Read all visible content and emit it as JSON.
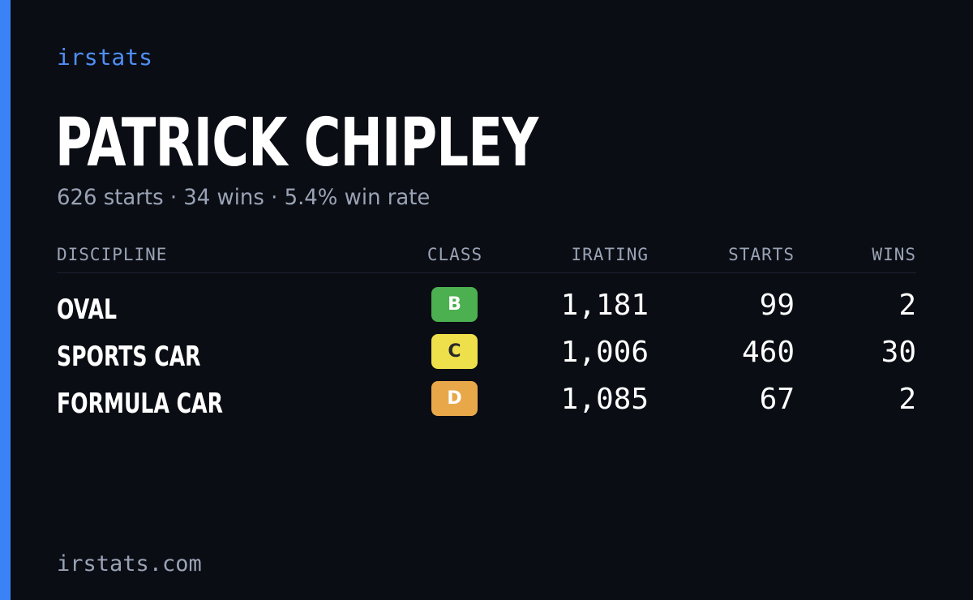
{
  "brand": "irstats",
  "driver": {
    "name": "PATRICK CHIPLEY",
    "summary": "626 starts · 34 wins · 5.4% win rate"
  },
  "table": {
    "headers": {
      "discipline": "DISCIPLINE",
      "class": "CLASS",
      "irating": "IRATING",
      "starts": "STARTS",
      "wins": "WINS"
    },
    "rows": [
      {
        "discipline": "OVAL",
        "class": "B",
        "class_color": "#4caf50",
        "class_text_color": "#ffffff",
        "irating": "1,181",
        "starts": "99",
        "wins": "2"
      },
      {
        "discipline": "SPORTS CAR",
        "class": "C",
        "class_color": "#eee04a",
        "class_text_color": "#2a2a2a",
        "irating": "1,006",
        "starts": "460",
        "wins": "30"
      },
      {
        "discipline": "FORMULA CAR",
        "class": "D",
        "class_color": "#e8a84a",
        "class_text_color": "#ffffff",
        "irating": "1,085",
        "starts": "67",
        "wins": "2"
      }
    ]
  },
  "footer": "irstats.com",
  "colors": {
    "background": "#0a0d14",
    "accent": "#3b82f6",
    "brand_text": "#4f8ff7",
    "muted_text": "#9aa3b5"
  }
}
